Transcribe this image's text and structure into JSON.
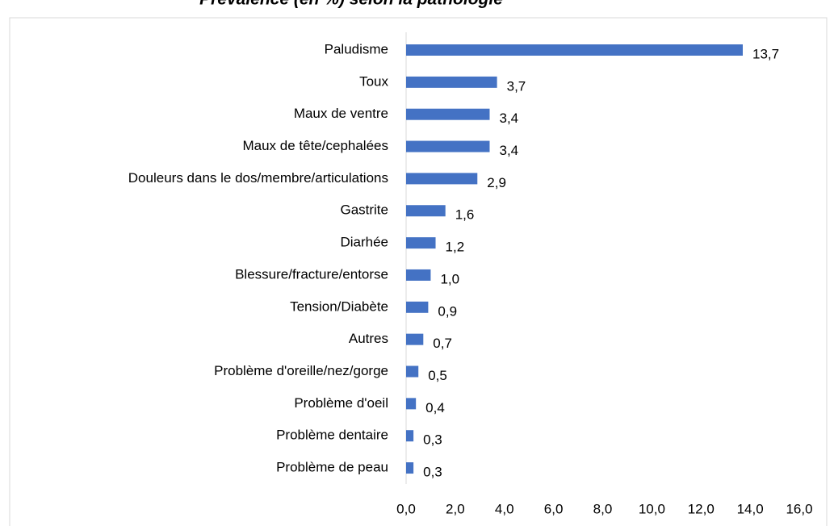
{
  "chart_data": {
    "type": "bar",
    "orientation": "horizontal",
    "title": "Prévalence (en %) selon la pathologie",
    "categories": [
      "Paludisme",
      "Toux",
      "Maux de ventre",
      "Maux de tête/cephalées",
      "Douleurs dans le dos/membre/articulations",
      "Gastrite",
      "Diarhée",
      "Blessure/fracture/entorse",
      "Tension/Diabète",
      "Autres",
      "Problème d'oreille/nez/gorge",
      "Problème d'oeil",
      "Problème dentaire",
      "Problème de peau"
    ],
    "values": [
      13.7,
      3.7,
      3.4,
      3.4,
      2.9,
      1.6,
      1.2,
      1.0,
      0.9,
      0.7,
      0.5,
      0.4,
      0.3,
      0.3
    ],
    "value_labels": [
      "13,7",
      "3,7",
      "3,4",
      "3,4",
      "2,9",
      "1,6",
      "1,2",
      "1,0",
      "0,9",
      "0,7",
      "0,5",
      "0,4",
      "0,3",
      "0,3"
    ],
    "color": "#4472c4",
    "xlim": [
      0,
      16
    ],
    "xticks": [
      {
        "value": 0,
        "label": "0,0"
      },
      {
        "value": 2,
        "label": "2,0"
      },
      {
        "value": 4,
        "label": "4,0"
      },
      {
        "value": 6,
        "label": "6,0"
      },
      {
        "value": 8,
        "label": "8,0"
      },
      {
        "value": 10,
        "label": "10,0"
      },
      {
        "value": 12,
        "label": "12,0"
      },
      {
        "value": 14,
        "label": "14,0"
      },
      {
        "value": 16,
        "label": "16,0"
      }
    ],
    "grid": false
  }
}
